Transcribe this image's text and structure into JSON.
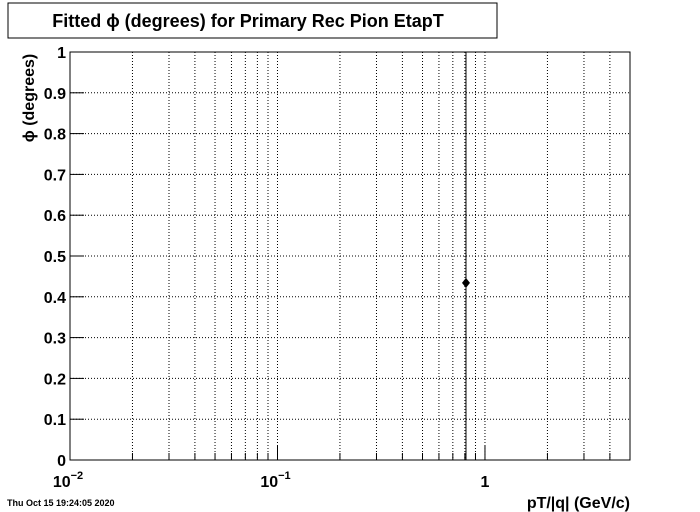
{
  "chart_data": {
    "type": "scatter",
    "title": "Fitted ϕ (degrees) for Primary Rec Pion EtapT",
    "x_label": "pT/|q| (GeV/c)",
    "y_label": "ϕ (degrees)",
    "timestamp": "Thu Oct 15 19:24:05 2020",
    "x_log": true,
    "grid": true,
    "color": "#000000",
    "x": [
      0.81
    ],
    "values": [
      0.434
    ],
    "errors": [
      0.6
    ],
    "xlim": [
      0.01,
      5
    ],
    "ylim": [
      0,
      1
    ],
    "xticks": [
      {
        "value": 0.01,
        "label": "10",
        "exponent": "−2"
      },
      {
        "value": 0.1,
        "label": "10",
        "exponent": "−1"
      },
      1
    ],
    "xminor": [
      0.02,
      0.03,
      0.04,
      0.05,
      0.06,
      0.07,
      0.08,
      0.09,
      0.2,
      0.3,
      0.4,
      0.5,
      0.6,
      0.7,
      0.8,
      0.9,
      2,
      3,
      4
    ],
    "yticks": [
      0,
      0.1,
      0.2,
      0.3,
      0.4,
      0.5,
      0.6,
      0.7,
      0.8,
      0.9,
      1
    ]
  }
}
